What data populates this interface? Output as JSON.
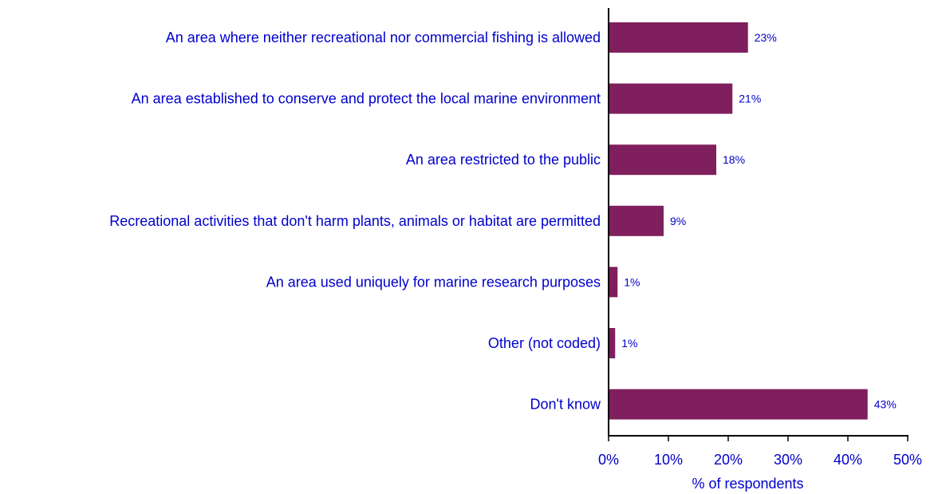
{
  "chart_data": {
    "type": "bar",
    "orientation": "horizontal",
    "categories": [
      "An area where neither recreational nor commercial fishing is allowed",
      "An area established to conserve and protect the local marine environment",
      "An area restricted to the public",
      "Recreational activities that don't harm plants, animals or habitat are permitted",
      "An area used uniquely for marine research purposes",
      "Other (not coded)",
      "Don't know"
    ],
    "values": [
      23.3,
      20.7,
      18,
      9.2,
      1.5,
      1.1,
      43.3
    ],
    "value_labels": [
      "23%",
      "21%",
      "18%",
      "9%",
      "1%",
      "1%",
      "43%"
    ],
    "xlabel": "% of respondents",
    "xlim": [
      0,
      50
    ],
    "xticks": [
      0,
      10,
      20,
      30,
      40,
      50
    ],
    "xtick_labels": [
      "0%",
      "10%",
      "20%",
      "30%",
      "40%",
      "50%"
    ],
    "grid": false,
    "colors": {
      "bar": "#7f1f5e",
      "text": "#0000cc",
      "axis": "#000000"
    }
  }
}
